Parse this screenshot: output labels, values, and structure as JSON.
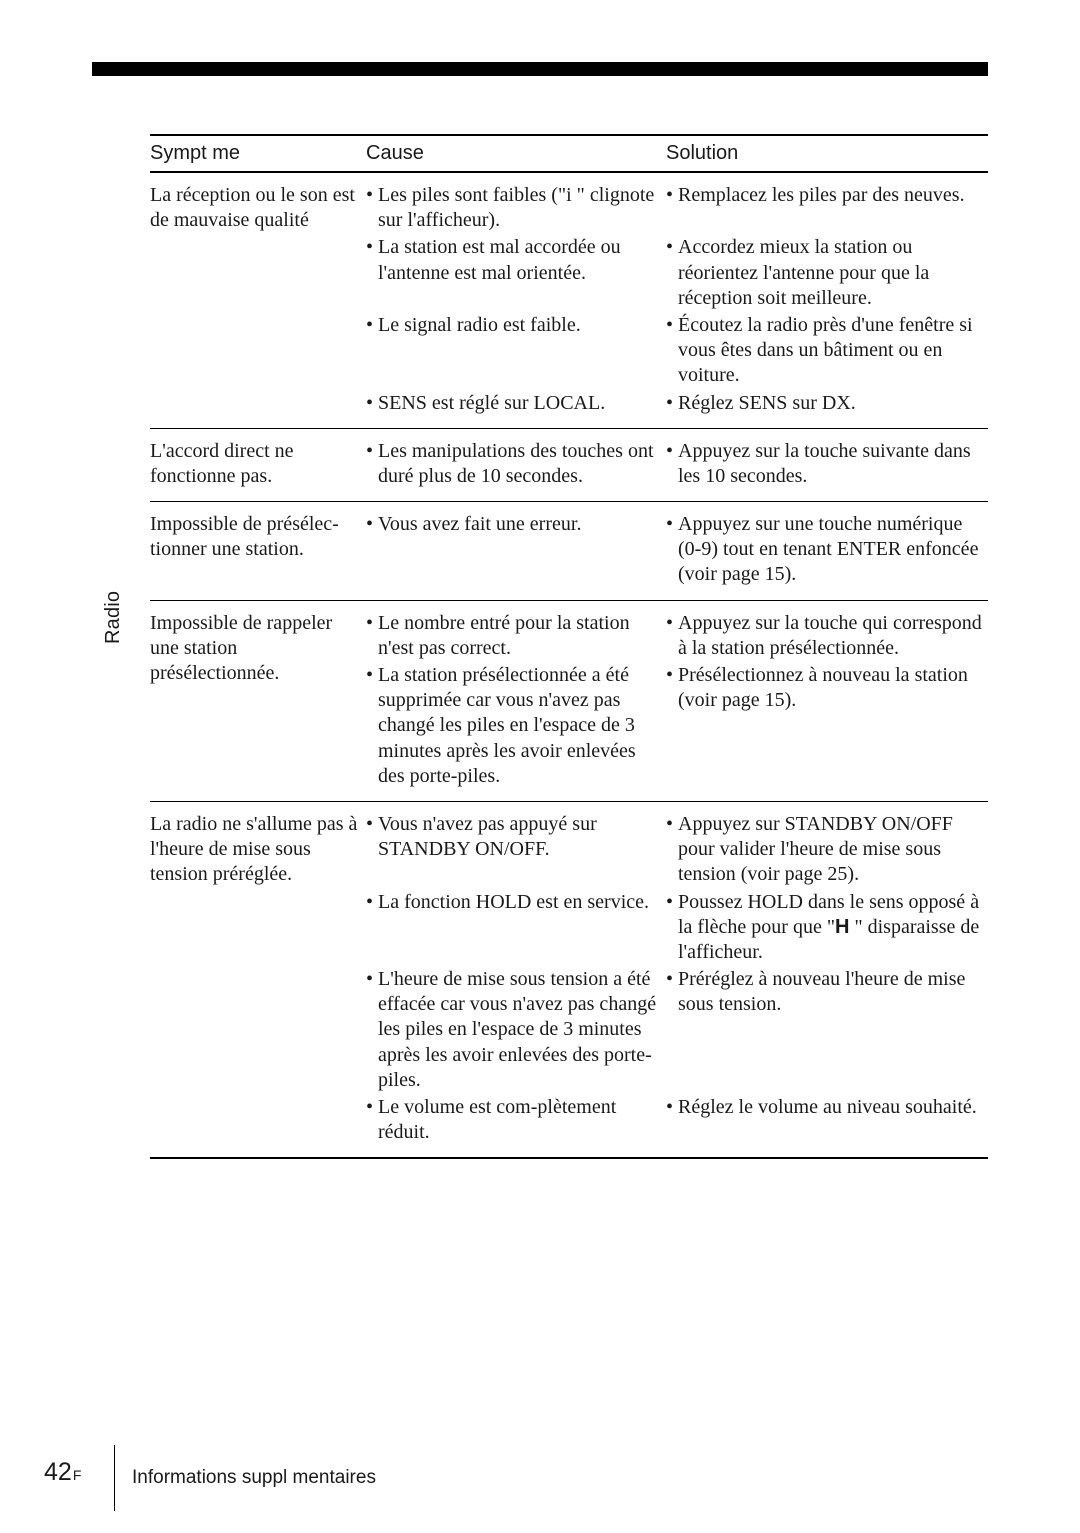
{
  "topbar_color": "#000000",
  "side_label": "Radio",
  "headers": {
    "c1": "Sympt  me",
    "c2": "Cause",
    "c3": "Solution"
  },
  "rows": [
    {
      "symptom": "La réception ou le son est de mauvaise qualité",
      "pairs": [
        {
          "cause": "Les piles sont faibles (\"i    \" clignote sur l'afficheur).",
          "solution": "Remplacez les piles par des neuves."
        },
        {
          "cause": "La station est mal accordée ou l'antenne est mal orientée.",
          "solution": "Accordez mieux la station ou réorientez l'antenne pour que la réception soit meilleure."
        },
        {
          "cause": "Le signal radio est faible.",
          "solution": "Écoutez la radio près d'une fenêtre si vous êtes dans un bâtiment ou en voiture."
        },
        {
          "cause": "SENS est réglé sur LOCAL.",
          "solution": "Réglez SENS sur DX."
        }
      ]
    },
    {
      "symptom": "L'accord direct ne fonctionne pas.",
      "pairs": [
        {
          "cause": "Les manipulations des touches ont duré plus de 10 secondes.",
          "solution": "Appuyez sur la touche suivante dans les 10 secondes."
        }
      ]
    },
    {
      "symptom": "Impossible de présélec-tionner une station.",
      "pairs": [
        {
          "cause": "Vous avez fait une erreur.",
          "solution": "Appuyez sur une touche numérique (0-9) tout en tenant ENTER enfoncée (voir page 15)."
        }
      ]
    },
    {
      "symptom": "Impossible de rappeler une station présélectionnée.",
      "pairs": [
        {
          "cause": "Le nombre entré pour la station n'est pas correct.",
          "solution": "Appuyez sur la touche qui correspond à la station présélectionnée."
        },
        {
          "cause": "La station présélectionnée a été supprimée car vous n'avez pas changé les piles en l'espace de 3 minutes après les avoir enlevées des porte-piles.",
          "solution": "Présélectionnez à nouveau la station (voir page 15)."
        }
      ]
    },
    {
      "symptom": "La radio ne s'allume pas à l'heure de mise sous tension préréglée.",
      "pairs": [
        {
          "cause": "Vous n'avez pas appuyé sur STANDBY ON/OFF.",
          "solution": "Appuyez sur STANDBY ON/OFF pour valider l'heure de mise sous tension (voir page 25)."
        },
        {
          "cause": "La fonction HOLD est en service.",
          "solution_html": "Poussez HOLD dans le sens opposé à la flèche pour que \"<span class='icon-h'>H</span>   \" disparaisse de l'afficheur."
        },
        {
          "cause": "L'heure de mise sous tension a été effacée car vous n'avez pas changé les piles en l'espace de 3 minutes après les avoir enlevées des porte-piles.",
          "solution": "Préréglez à nouveau l'heure de mise sous tension."
        },
        {
          "cause": "Le volume est com-plètement réduit.",
          "solution": "Réglez le volume au niveau souhaité."
        }
      ]
    }
  ],
  "footer": {
    "page": "42",
    "sup": "F",
    "section": "Informations suppl  mentaires"
  }
}
